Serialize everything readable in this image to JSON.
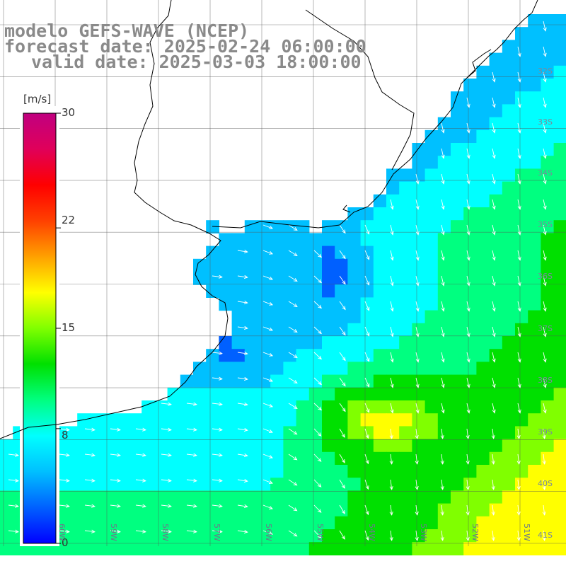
{
  "title": {
    "model": "modelo GEFS-WAVE (NCEP)",
    "forecast": "forecast date: 2025-02-24 06:00:00",
    "valid": "valid date: 2025-03-03 18:00:00"
  },
  "colorbar": {
    "unit": "[m/s]",
    "ticks": [
      "30",
      "22",
      "15",
      "8",
      "0"
    ],
    "tick_values": [
      30,
      22,
      15,
      8,
      0
    ],
    "colors": [
      "#0000ff",
      "#0060ff",
      "#00c0ff",
      "#00ffff",
      "#00ff80",
      "#00e000",
      "#80ff00",
      "#ffff00",
      "#ffa000",
      "#ff4000",
      "#ff0000",
      "#e0005a",
      "#c00080"
    ]
  },
  "lat_labels": [
    "32S",
    "33S",
    "34S",
    "35S",
    "36S",
    "37S",
    "38S",
    "39S",
    "40S",
    "41S"
  ],
  "lon_labels": [
    "60W",
    "59W",
    "58W",
    "57W",
    "56W",
    "55W",
    "54W",
    "53W",
    "52W",
    "51W"
  ]
}
